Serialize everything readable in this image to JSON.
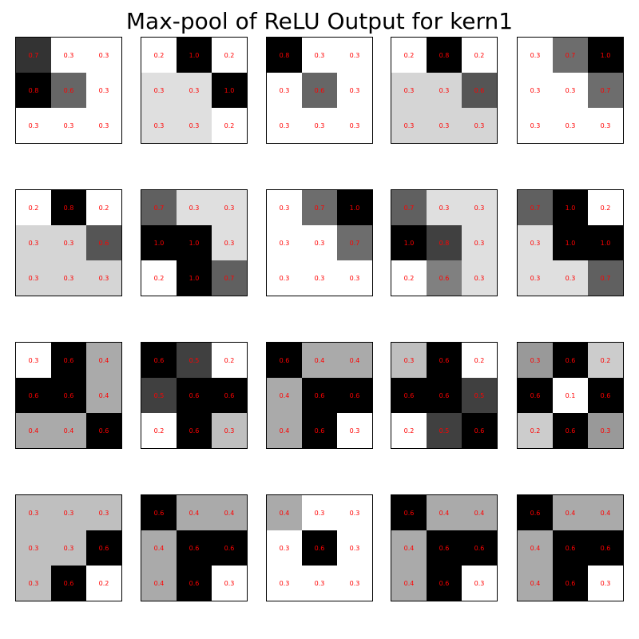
{
  "title": "Max-pool of ReLU Output for kern1",
  "colors": {
    "label": "#ff0000",
    "low": "#ffffff",
    "high": "#000000"
  },
  "chart_data": {
    "type": "heatmap",
    "title": "Max-pool of ReLU Output for kern1",
    "colormap": "gray_r",
    "grid": "off",
    "rows": 4,
    "cols": 5,
    "panels": [
      {
        "values": [
          [
            0.7,
            0.3,
            0.3
          ],
          [
            0.8,
            0.6,
            0.3
          ],
          [
            0.3,
            0.3,
            0.3
          ]
        ],
        "labels": [
          [
            "0.7",
            "0.3",
            "0.3"
          ],
          [
            "0.8",
            "0.6",
            "0.3"
          ],
          [
            "0.3",
            "0.3",
            "0.3"
          ]
        ]
      },
      {
        "values": [
          [
            0.2,
            1.0,
            0.2
          ],
          [
            0.3,
            0.3,
            1.0
          ],
          [
            0.3,
            0.3,
            0.2
          ]
        ],
        "labels": [
          [
            "0.2",
            "1.0",
            "0.2"
          ],
          [
            "0.3",
            "0.3",
            "1.0"
          ],
          [
            "0.3",
            "0.3",
            "0.2"
          ]
        ]
      },
      {
        "values": [
          [
            0.8,
            0.3,
            0.3
          ],
          [
            0.3,
            0.6,
            0.3
          ],
          [
            0.3,
            0.3,
            0.3
          ]
        ],
        "labels": [
          [
            "0.8",
            "0.3",
            "0.3"
          ],
          [
            "0.3",
            "0.6",
            "0.3"
          ],
          [
            "0.3",
            "0.3",
            "0.3"
          ]
        ]
      },
      {
        "values": [
          [
            0.2,
            0.8,
            0.2
          ],
          [
            0.3,
            0.3,
            0.6
          ],
          [
            0.3,
            0.3,
            0.3
          ]
        ],
        "labels": [
          [
            "0.2",
            "0.8",
            "0.2"
          ],
          [
            "0.3",
            "0.3",
            "0.6"
          ],
          [
            "0.3",
            "0.3",
            "0.3"
          ]
        ]
      },
      {
        "values": [
          [
            0.3,
            0.7,
            1.0
          ],
          [
            0.3,
            0.3,
            0.7
          ],
          [
            0.3,
            0.3,
            0.3
          ]
        ],
        "labels": [
          [
            "0.3",
            "0.7",
            "1.0"
          ],
          [
            "0.3",
            "0.3",
            "0.7"
          ],
          [
            "0.3",
            "0.3",
            "0.3"
          ]
        ]
      },
      {
        "values": [
          [
            0.2,
            0.8,
            0.2
          ],
          [
            0.3,
            0.3,
            0.6
          ],
          [
            0.3,
            0.3,
            0.3
          ]
        ],
        "labels": [
          [
            "0.2",
            "0.8",
            "0.2"
          ],
          [
            "0.3",
            "0.3",
            "0.6"
          ],
          [
            "0.3",
            "0.3",
            "0.3"
          ]
        ]
      },
      {
        "values": [
          [
            0.7,
            0.3,
            0.3
          ],
          [
            1.0,
            1.0,
            0.3
          ],
          [
            0.2,
            1.0,
            0.7
          ]
        ],
        "labels": [
          [
            "0.7",
            "0.3",
            "0.3"
          ],
          [
            "1.0",
            "1.0",
            "0.3"
          ],
          [
            "0.2",
            "1.0",
            "0.7"
          ]
        ]
      },
      {
        "values": [
          [
            0.3,
            0.7,
            1.0
          ],
          [
            0.3,
            0.3,
            0.7
          ],
          [
            0.3,
            0.3,
            0.3
          ]
        ],
        "labels": [
          [
            "0.3",
            "0.7",
            "1.0"
          ],
          [
            "0.3",
            "0.3",
            "0.7"
          ],
          [
            "0.3",
            "0.3",
            "0.3"
          ]
        ]
      },
      {
        "values": [
          [
            0.7,
            0.3,
            0.3
          ],
          [
            1.0,
            0.8,
            0.3
          ],
          [
            0.2,
            0.6,
            0.3
          ]
        ],
        "labels": [
          [
            "0.7",
            "0.3",
            "0.3"
          ],
          [
            "1.0",
            "0.8",
            "0.3"
          ],
          [
            "0.2",
            "0.6",
            "0.3"
          ]
        ]
      },
      {
        "values": [
          [
            0.7,
            1.0,
            0.2
          ],
          [
            0.3,
            1.0,
            1.0
          ],
          [
            0.3,
            0.3,
            0.7
          ]
        ],
        "labels": [
          [
            "0.7",
            "1.0",
            "0.2"
          ],
          [
            "0.3",
            "1.0",
            "1.0"
          ],
          [
            "0.3",
            "0.3",
            "0.7"
          ]
        ]
      },
      {
        "values": [
          [
            0.3,
            0.6,
            0.4
          ],
          [
            0.6,
            0.6,
            0.4
          ],
          [
            0.4,
            0.4,
            0.6
          ]
        ],
        "labels": [
          [
            "0.3",
            "0.6",
            "0.4"
          ],
          [
            "0.6",
            "0.6",
            "0.4"
          ],
          [
            "0.4",
            "0.4",
            "0.6"
          ]
        ]
      },
      {
        "values": [
          [
            0.6,
            0.5,
            0.2
          ],
          [
            0.5,
            0.6,
            0.6
          ],
          [
            0.2,
            0.6,
            0.3
          ]
        ],
        "labels": [
          [
            "0.6",
            "0.5",
            "0.2"
          ],
          [
            "0.5",
            "0.6",
            "0.6"
          ],
          [
            "0.2",
            "0.6",
            "0.3"
          ]
        ]
      },
      {
        "values": [
          [
            0.6,
            0.4,
            0.4
          ],
          [
            0.4,
            0.6,
            0.6
          ],
          [
            0.4,
            0.6,
            0.3
          ]
        ],
        "labels": [
          [
            "0.6",
            "0.4",
            "0.4"
          ],
          [
            "0.4",
            "0.6",
            "0.6"
          ],
          [
            "0.4",
            "0.6",
            "0.3"
          ]
        ]
      },
      {
        "values": [
          [
            0.3,
            0.6,
            0.2
          ],
          [
            0.6,
            0.6,
            0.5
          ],
          [
            0.2,
            0.5,
            0.6
          ]
        ],
        "labels": [
          [
            "0.3",
            "0.6",
            "0.2"
          ],
          [
            "0.6",
            "0.6",
            "0.5"
          ],
          [
            "0.2",
            "0.5",
            "0.6"
          ]
        ]
      },
      {
        "values": [
          [
            0.3,
            0.6,
            0.2
          ],
          [
            0.6,
            0.1,
            0.6
          ],
          [
            0.2,
            0.6,
            0.3
          ]
        ],
        "labels": [
          [
            "0.3",
            "0.6",
            "0.2"
          ],
          [
            "0.6",
            "0.1",
            "0.6"
          ],
          [
            "0.2",
            "0.6",
            "0.3"
          ]
        ]
      },
      {
        "values": [
          [
            0.3,
            0.3,
            0.3
          ],
          [
            0.3,
            0.3,
            0.6
          ],
          [
            0.3,
            0.6,
            0.2
          ]
        ],
        "labels": [
          [
            "0.3",
            "0.3",
            "0.3"
          ],
          [
            "0.3",
            "0.3",
            "0.6"
          ],
          [
            "0.3",
            "0.6",
            "0.2"
          ]
        ]
      },
      {
        "values": [
          [
            0.6,
            0.4,
            0.4
          ],
          [
            0.4,
            0.6,
            0.6
          ],
          [
            0.4,
            0.6,
            0.3
          ]
        ],
        "labels": [
          [
            "0.6",
            "0.4",
            "0.4"
          ],
          [
            "0.4",
            "0.6",
            "0.6"
          ],
          [
            "0.4",
            "0.6",
            "0.3"
          ]
        ]
      },
      {
        "values": [
          [
            0.4,
            0.3,
            0.3
          ],
          [
            0.3,
            0.6,
            0.3
          ],
          [
            0.3,
            0.3,
            0.3
          ]
        ],
        "labels": [
          [
            "0.4",
            "0.3",
            "0.3"
          ],
          [
            "0.3",
            "0.6",
            "0.3"
          ],
          [
            "0.3",
            "0.3",
            "0.3"
          ]
        ]
      },
      {
        "values": [
          [
            0.6,
            0.4,
            0.4
          ],
          [
            0.4,
            0.6,
            0.6
          ],
          [
            0.4,
            0.6,
            0.3
          ]
        ],
        "labels": [
          [
            "0.6",
            "0.4",
            "0.4"
          ],
          [
            "0.4",
            "0.6",
            "0.6"
          ],
          [
            "0.4",
            "0.6",
            "0.3"
          ]
        ]
      },
      {
        "values": [
          [
            0.6,
            0.4,
            0.4
          ],
          [
            0.4,
            0.6,
            0.6
          ],
          [
            0.4,
            0.6,
            0.3
          ]
        ],
        "labels": [
          [
            "0.6",
            "0.4",
            "0.4"
          ],
          [
            "0.4",
            "0.6",
            "0.6"
          ],
          [
            "0.4",
            "0.6",
            "0.3"
          ]
        ]
      }
    ]
  }
}
